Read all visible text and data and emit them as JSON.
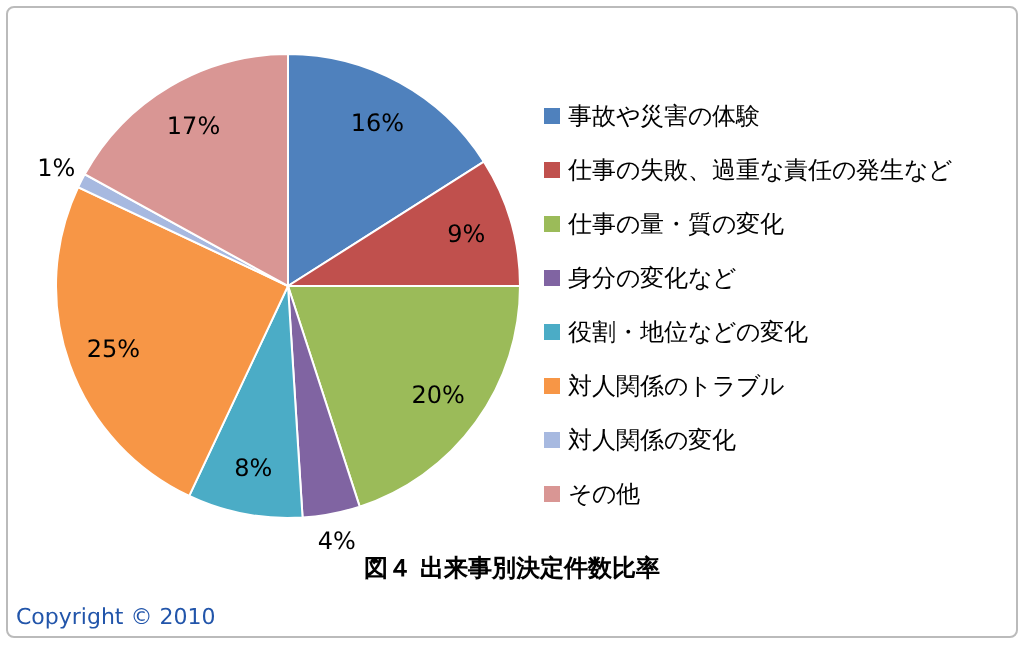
{
  "chart_data": {
    "type": "pie",
    "title": "図４ 出来事別決定件数比率",
    "categories": [
      "事故や災害の体験",
      "仕事の失敗、過重な責任の発生など",
      "仕事の量・質の変化",
      "身分の変化など",
      "役割・地位などの変化",
      "対人関係のトラブル",
      "対人関係の変化",
      "その他"
    ],
    "values": [
      16,
      9,
      20,
      4,
      8,
      25,
      1,
      17
    ],
    "value_labels": [
      "16%",
      "9%",
      "20%",
      "4%",
      "8%",
      "25%",
      "1%",
      "17%"
    ],
    "colors": [
      "#4f81bd",
      "#c0504d",
      "#9bbb59",
      "#8064a2",
      "#4bacc6",
      "#f79646",
      "#a7b9e0",
      "#d99694"
    ],
    "legend": "right",
    "annotations": [
      "Copyright © 2010"
    ]
  }
}
